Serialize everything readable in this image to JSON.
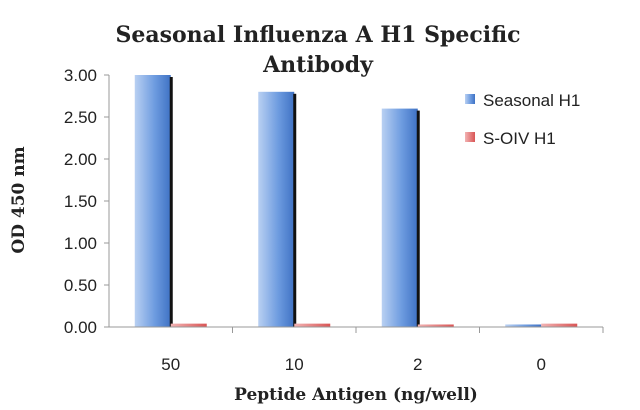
{
  "chart_data": {
    "type": "bar",
    "title_line1": "Seasonal Influenza A H1 Specific",
    "title_line2": "Antibody",
    "xlabel": "Peptide Antigen (ng/well)",
    "ylabel": "OD 450 nm",
    "categories": [
      "50",
      "10",
      "2",
      "0"
    ],
    "ylim": [
      0,
      3
    ],
    "yticks": [
      "0.00",
      "0.50",
      "1.00",
      "1.50",
      "2.00",
      "2.50",
      "3.00"
    ],
    "series": [
      {
        "name": "Seasonal H1",
        "values": [
          3.0,
          2.8,
          2.6,
          0.03
        ],
        "color": "#5b8fd6"
      },
      {
        "name": "S-OIV H1",
        "values": [
          0.04,
          0.04,
          0.03,
          0.04
        ],
        "color": "#e06666"
      }
    ],
    "grid": false,
    "legend_position": "right"
  }
}
